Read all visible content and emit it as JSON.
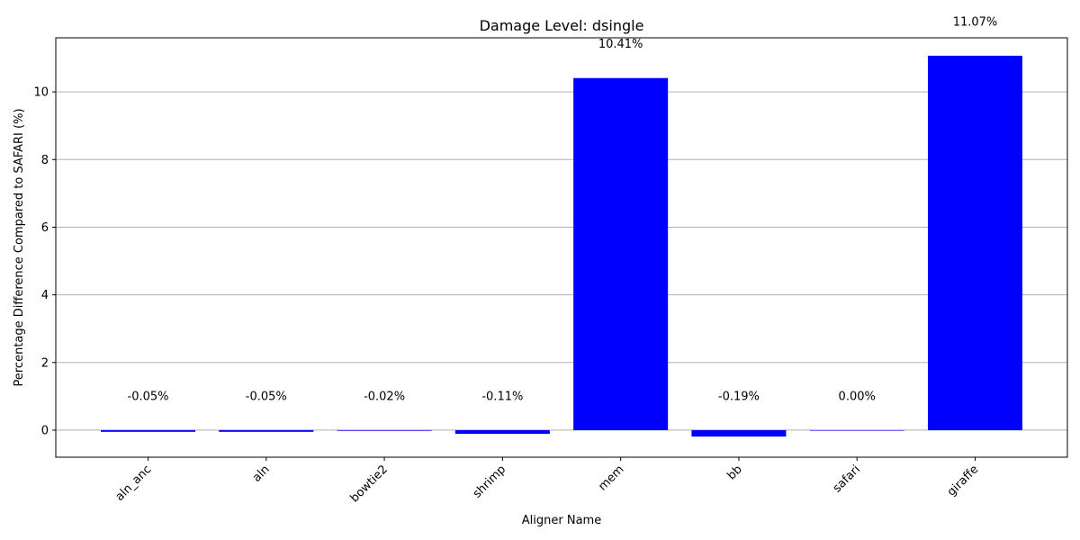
{
  "chart_data": {
    "type": "bar",
    "title": "Damage Level: dsingle",
    "xlabel": "Aligner Name",
    "ylabel": "Percentage Difference Compared to SAFARI (%)",
    "categories": [
      "aln_anc",
      "aln",
      "bowtie2",
      "shrimp",
      "mem",
      "bb",
      "safari",
      "giraffe"
    ],
    "values": [
      -0.05,
      -0.05,
      -0.02,
      -0.11,
      10.41,
      -0.19,
      0.0,
      11.07
    ],
    "data_labels": [
      "-0.05%",
      "-0.05%",
      "-0.02%",
      "-0.11%",
      "10.41%",
      "-0.19%",
      "0.00%",
      "11.07%"
    ],
    "ylim": [
      -0.8,
      11.6
    ],
    "yticks": [
      0,
      2,
      4,
      6,
      8,
      10
    ],
    "ytick_labels": [
      "0",
      "2",
      "4",
      "6",
      "8",
      "10"
    ],
    "grid": "y-major",
    "bar_color": "#0000ff",
    "grid_color": "#b0b0b0"
  }
}
